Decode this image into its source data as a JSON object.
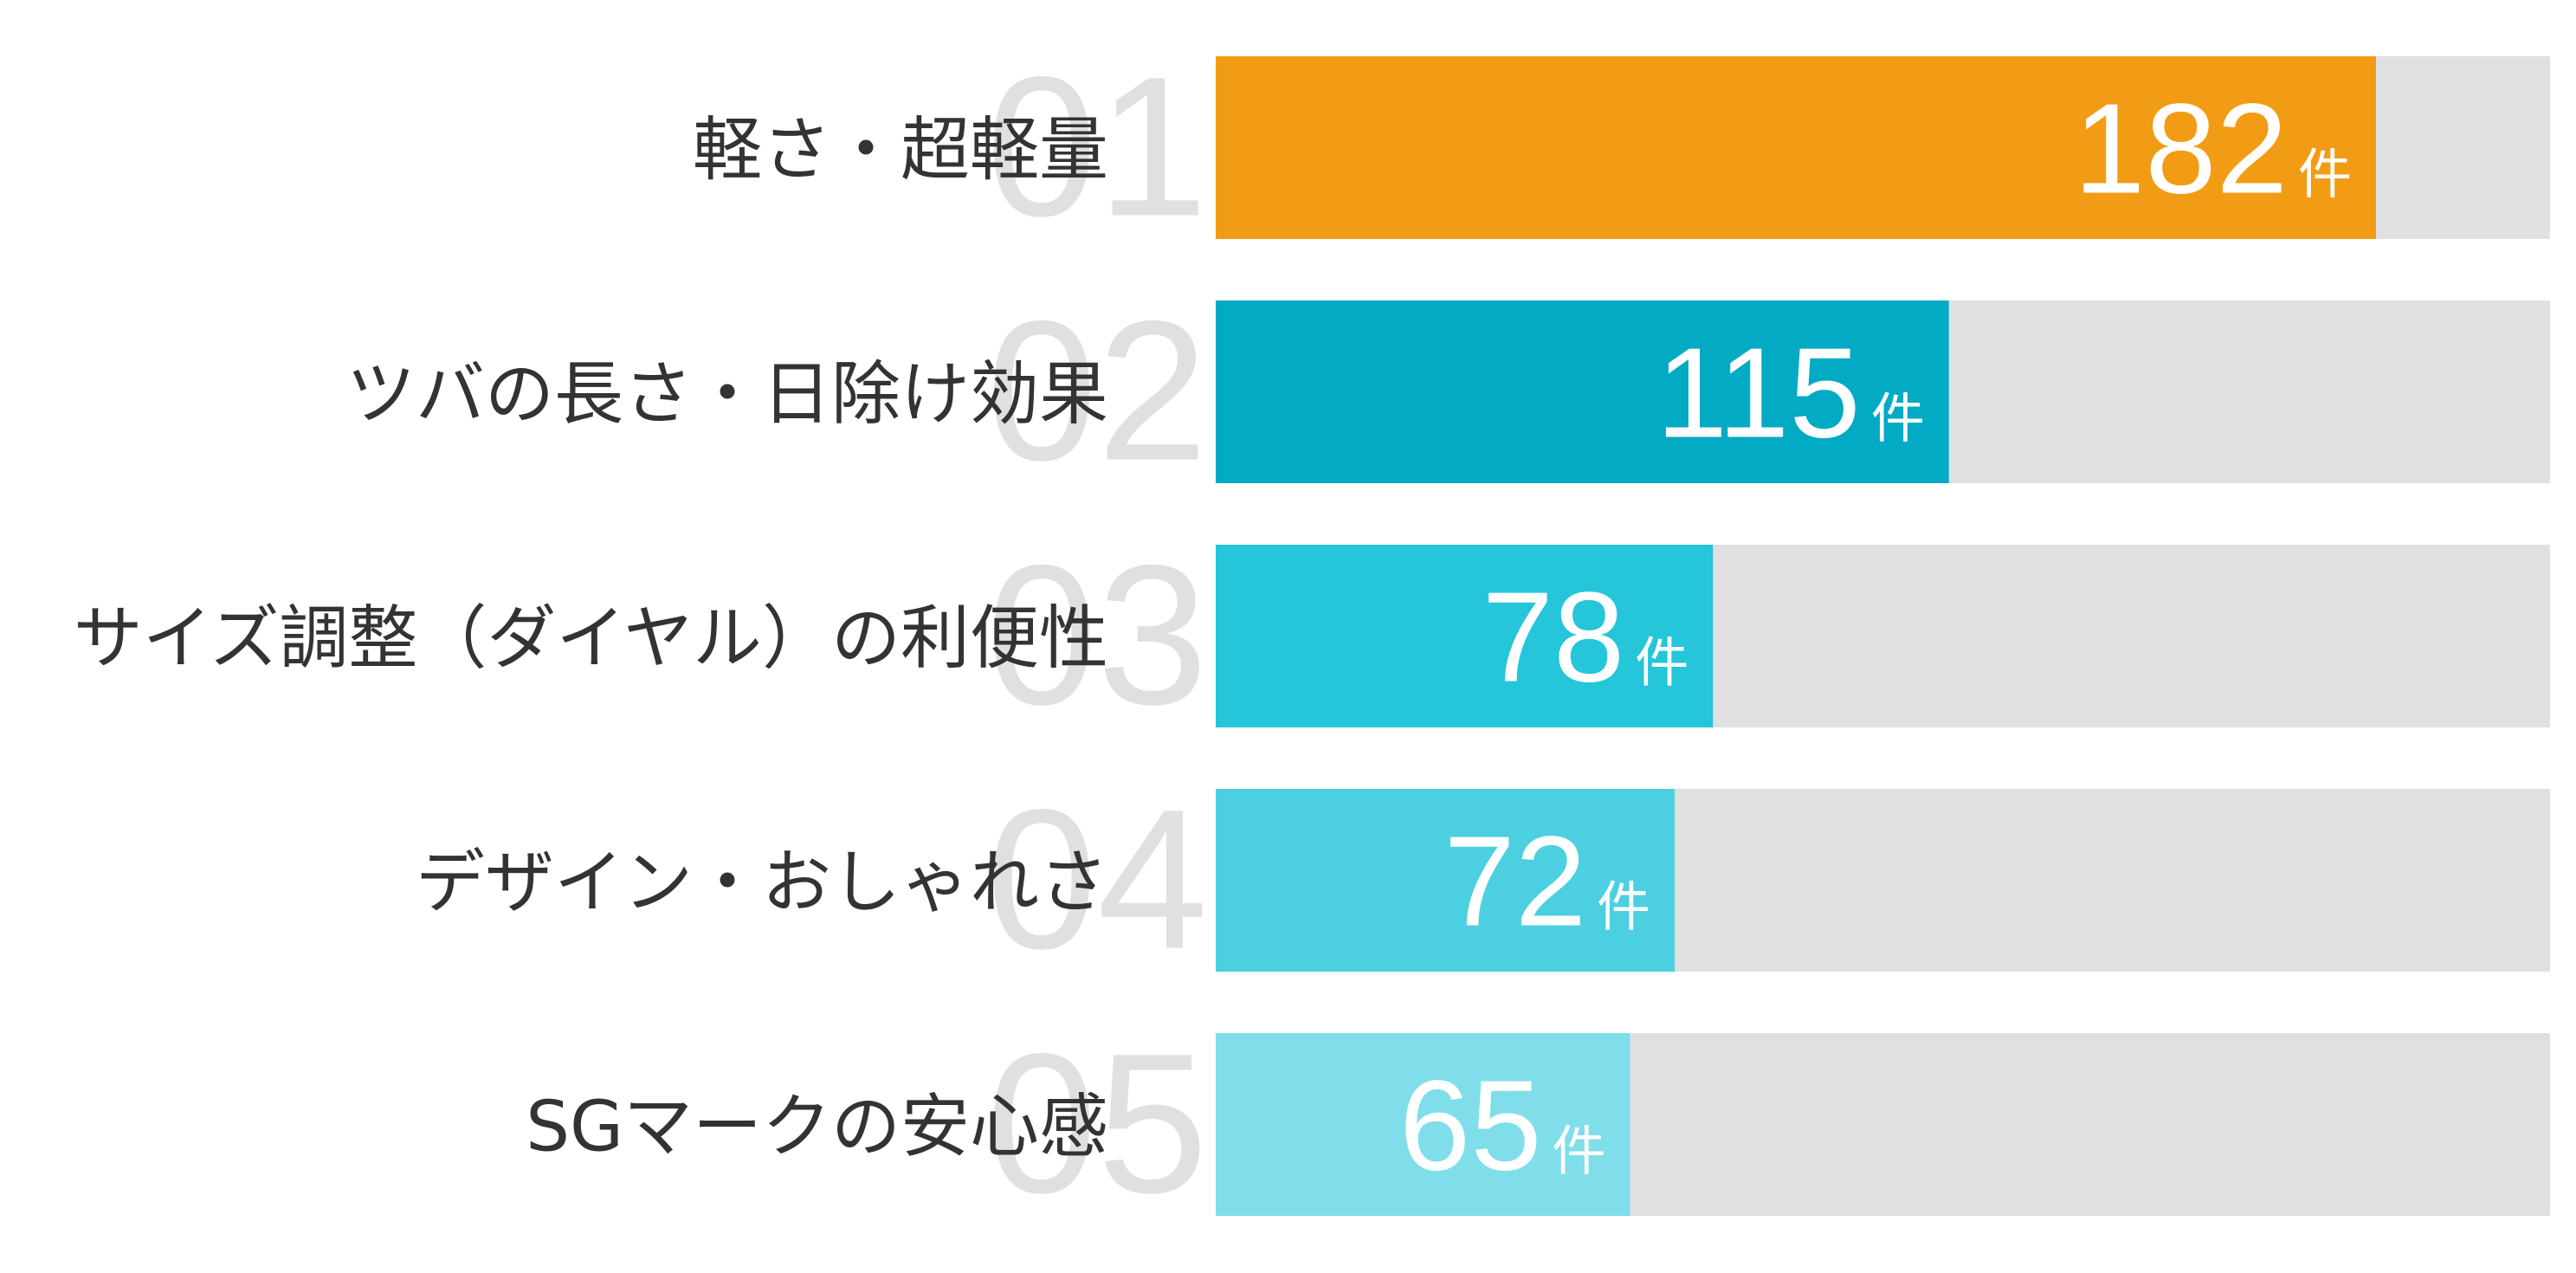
{
  "chart_data": {
    "type": "bar",
    "orientation": "horizontal",
    "categories": [
      "軽さ・超軽量",
      "ツバの長さ・日除け効果",
      "サイズ調整（ダイヤル）の利便性",
      "デザイン・おしゃれさ",
      "SGマークの安心感"
    ],
    "ranks": [
      "01",
      "02",
      "03",
      "04",
      "05"
    ],
    "values": [
      182,
      115,
      78,
      72,
      65
    ],
    "unit": "件",
    "xlim": [
      0,
      210
    ],
    "grid": false,
    "legend": "none"
  },
  "colors": {
    "bars": [
      "#F29C15",
      "#02AAC4",
      "#25C5DA",
      "#4CD0E1",
      "#80DEEA"
    ],
    "track": "#E0E0E0",
    "rank_number": "#E0E0E0",
    "label_text": "#333333",
    "value_text": "#FFFFFF"
  }
}
